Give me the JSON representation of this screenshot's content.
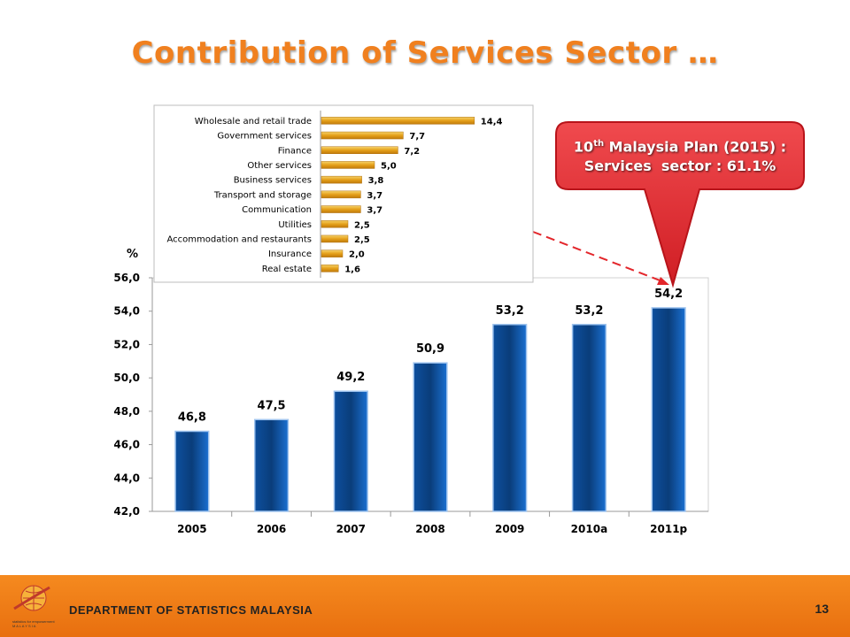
{
  "title": "Contribution of Services Sector …",
  "callout": {
    "plan_number": "10",
    "plan_suffix": "th",
    "plan_name": "Malaysia Plan (2015) :",
    "sector_line": "Services  sector : 61.1%"
  },
  "footer": {
    "department": "DEPARTMENT OF STATISTICS MALAYSIA",
    "page_number": "13",
    "logo_tagline": "statistics for empowerment",
    "logo_country": "M A L A Y S I A"
  },
  "colors": {
    "title": "#f0801f",
    "callout": "#e3262b",
    "footer": "#f58a1f",
    "main_bar": "#0a5ab5",
    "inset_bar": "#e8a31b"
  },
  "chart_data": [
    {
      "type": "bar",
      "title": "",
      "ylabel": "%",
      "xlabel": "",
      "categories": [
        "2005",
        "2006",
        "2007",
        "2008",
        "2009",
        "2010a",
        "2011p"
      ],
      "values": [
        46.8,
        47.5,
        49.2,
        50.9,
        53.2,
        53.2,
        54.2
      ],
      "value_labels": [
        "46,8",
        "47,5",
        "49,2",
        "50,9",
        "53,2",
        "53,2",
        "54,2"
      ],
      "ylim": [
        42.0,
        56.0
      ],
      "yticks": [
        42.0,
        44.0,
        46.0,
        48.0,
        50.0,
        52.0,
        54.0,
        56.0
      ],
      "ytick_labels": [
        "42,0",
        "44,0",
        "46,0",
        "48,0",
        "50,0",
        "52,0",
        "54,0",
        "56,0"
      ],
      "grid": false
    },
    {
      "type": "bar",
      "orientation": "horizontal",
      "title": "",
      "categories": [
        "Wholesale and retail trade",
        "Government services",
        "Finance",
        "Other services",
        "Business services",
        "Transport and storage",
        "Communication",
        "Utilities",
        "Accommodation and restaurants",
        "Insurance",
        "Real estate"
      ],
      "values": [
        14.4,
        7.7,
        7.2,
        5.0,
        3.8,
        3.7,
        3.7,
        2.5,
        2.5,
        2.0,
        1.6
      ],
      "value_labels": [
        "14,4",
        "7,7",
        "7,2",
        "5,0",
        "3,8",
        "3,7",
        "3,7",
        "2,5",
        "2,5",
        "2,0",
        "1,6"
      ],
      "xlim": [
        0,
        18
      ],
      "grid": false
    }
  ]
}
